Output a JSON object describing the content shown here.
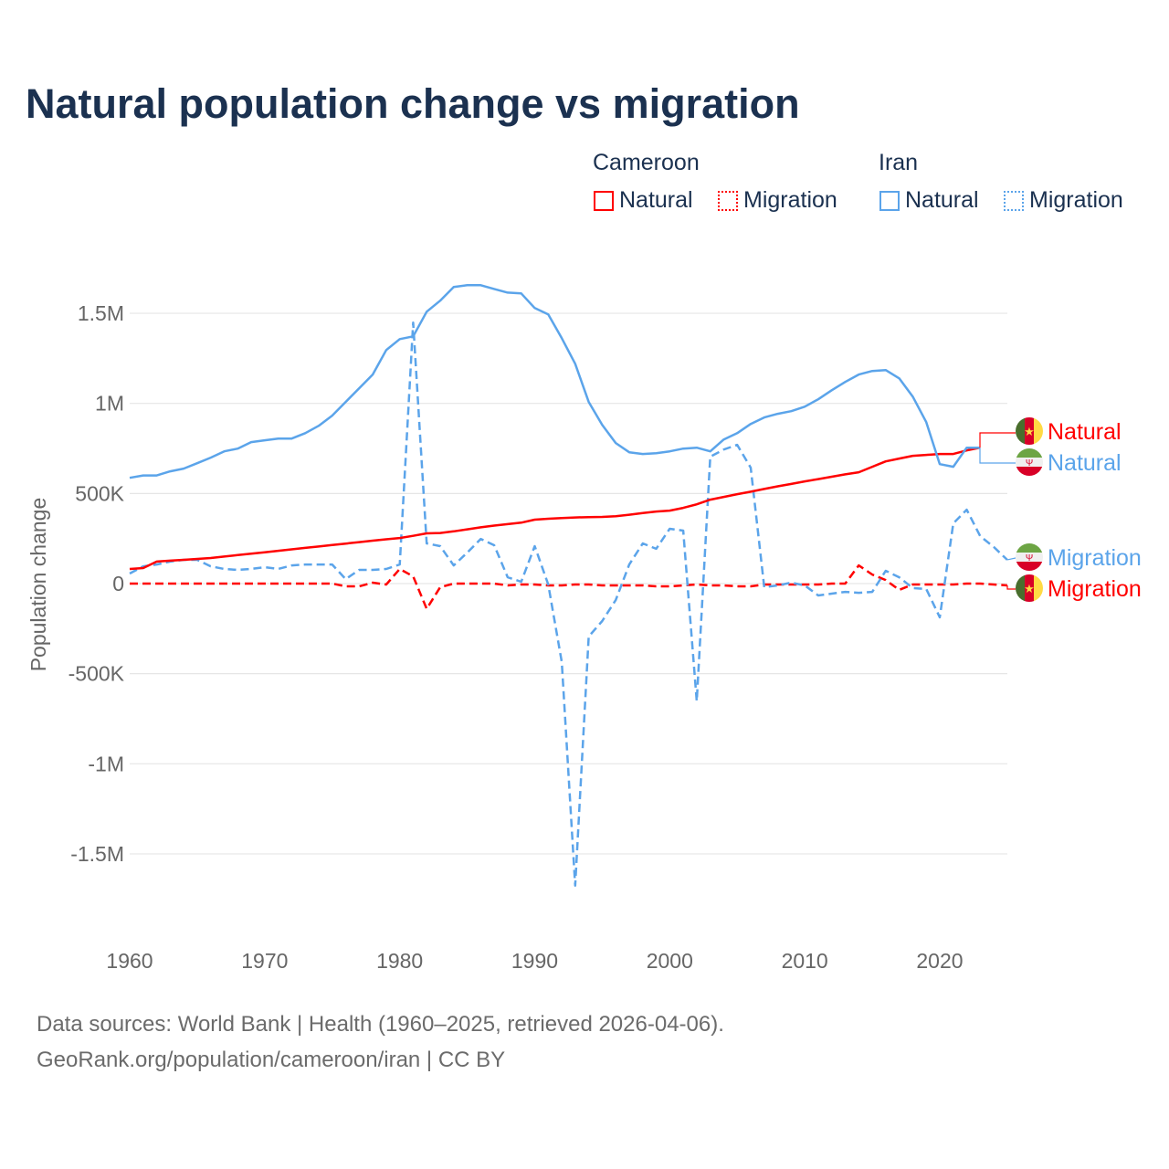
{
  "colors": {
    "cameroon": "#ff0000",
    "iran": "#5ba4ea",
    "title": "#1b3150"
  },
  "chart_data": {
    "type": "line",
    "title": "Natural population change vs migration",
    "xlabel": "",
    "ylabel": "Population change",
    "xlim": [
      1960,
      2025
    ],
    "ylim": [
      -1800000,
      1800000
    ],
    "x_ticks": [
      1960,
      1970,
      1980,
      1990,
      2000,
      2010,
      2020
    ],
    "x_tick_labels": [
      "1960",
      "1970",
      "1980",
      "1990",
      "2000",
      "2010",
      "2020"
    ],
    "y_ticks": [
      1500000,
      1000000,
      500000,
      0,
      -500000,
      -1000000,
      -1500000
    ],
    "y_tick_labels": [
      "1.5M",
      "1M",
      "500K",
      "0",
      "-500K",
      "-1M",
      "-1.5M"
    ],
    "grid": true,
    "legend": {
      "placement": "top-right",
      "groups": [
        {
          "name": "Cameroon",
          "items": [
            "Natural",
            "Migration"
          ]
        },
        {
          "name": "Iran",
          "items": [
            "Natural",
            "Migration"
          ]
        }
      ]
    },
    "series": [
      {
        "name": "Iran Natural",
        "country": "Iran",
        "kind": "Natural",
        "label": "Natural",
        "start": 1960,
        "values": [
          587000,
          600000,
          600000,
          623000,
          638000,
          668000,
          699000,
          734000,
          749000,
          785000,
          795000,
          805000,
          805000,
          835000,
          876000,
          932000,
          1008000,
          1084000,
          1160000,
          1296000,
          1357000,
          1372000,
          1509000,
          1570000,
          1646000,
          1656000,
          1656000,
          1635000,
          1615000,
          1610000,
          1529000,
          1494000,
          1362000,
          1220000,
          1008000,
          881000,
          780000,
          729000,
          719000,
          724000,
          734000,
          749000,
          754000,
          734000,
          800000,
          835000,
          886000,
          922000,
          942000,
          957000,
          982000,
          1023000,
          1073000,
          1119000,
          1160000,
          1180000,
          1185000,
          1139000,
          1038000,
          896000,
          663000,
          648000,
          754000,
          754000
        ]
      },
      {
        "name": "Cameroon Natural",
        "country": "Cameroon",
        "kind": "Natural",
        "label": "Natural",
        "start": 1960,
        "values": [
          81000,
          86000,
          122000,
          127000,
          132000,
          137000,
          142000,
          150000,
          158000,
          166000,
          174000,
          182000,
          190000,
          198000,
          206000,
          214000,
          222000,
          230000,
          238000,
          246000,
          253000,
          265000,
          279000,
          281000,
          290000,
          301000,
          312000,
          322000,
          330000,
          338000,
          355000,
          360000,
          364000,
          367000,
          369000,
          370000,
          374000,
          382000,
          392000,
          400000,
          405000,
          420000,
          440000,
          466000,
          481000,
          496000,
          510000,
          525000,
          540000,
          553000,
          567000,
          580000,
          593000,
          606000,
          618000,
          648000,
          678000,
          694000,
          709000,
          714000,
          719000,
          719000,
          739000,
          754000
        ]
      },
      {
        "name": "Iran Migration",
        "country": "Iran",
        "kind": "Migration",
        "label": "Migration",
        "start": 1960,
        "values": [
          56000,
          96000,
          106000,
          122000,
          132000,
          132000,
          96000,
          81000,
          76000,
          81000,
          91000,
          81000,
          101000,
          106000,
          106000,
          106000,
          25000,
          76000,
          76000,
          81000,
          106000,
          1448000,
          223000,
          208000,
          101000,
          172000,
          248000,
          213000,
          35000,
          10000,
          208000,
          -5000,
          -435000,
          -1676000,
          -294000,
          -208000,
          -91000,
          106000,
          223000,
          193000,
          304000,
          294000,
          -653000,
          704000,
          744000,
          770000,
          643000,
          -20000,
          -10000,
          5000,
          -10000,
          -66000,
          -56000,
          -46000,
          -51000,
          -46000,
          71000,
          35000,
          -25000,
          -30000,
          -187000,
          334000,
          410000,
          263000,
          203000,
          132000
        ]
      },
      {
        "name": "Cameroon Migration",
        "country": "Cameroon",
        "kind": "Migration",
        "label": "Migration",
        "start": 1960,
        "values": [
          0,
          0,
          0,
          0,
          0,
          0,
          0,
          0,
          0,
          0,
          0,
          0,
          0,
          0,
          0,
          0,
          -15000,
          -15000,
          5000,
          -5000,
          81000,
          40000,
          -140000,
          -20000,
          0,
          0,
          0,
          0,
          -10000,
          -5000,
          -5000,
          -10000,
          -10000,
          -5000,
          -5000,
          -10000,
          -10000,
          -10000,
          -10000,
          -15000,
          -15000,
          -10000,
          -5000,
          -10000,
          -10000,
          -15000,
          -15000,
          -5000,
          -5000,
          -5000,
          -5000,
          -5000,
          0,
          0,
          101000,
          50000,
          20000,
          -35000,
          -5000,
          -5000,
          -5000,
          -5000,
          0,
          0,
          -5000,
          -10000
        ]
      }
    ]
  },
  "legend": {
    "cameroon": "Cameroon",
    "iran": "Iran",
    "natural": "Natural",
    "migration": "Migration"
  },
  "end_labels": {
    "natural": "Natural",
    "migration": "Migration"
  },
  "flags": {
    "cameroon": "cameroon-flag-icon",
    "iran": "iran-flag-icon"
  },
  "footer": {
    "line1": "Data sources: World Bank | Health (1960–2025, retrieved 2026-04-06).",
    "line2": "GeoRank.org/population/cameroon/iran | CC BY"
  }
}
